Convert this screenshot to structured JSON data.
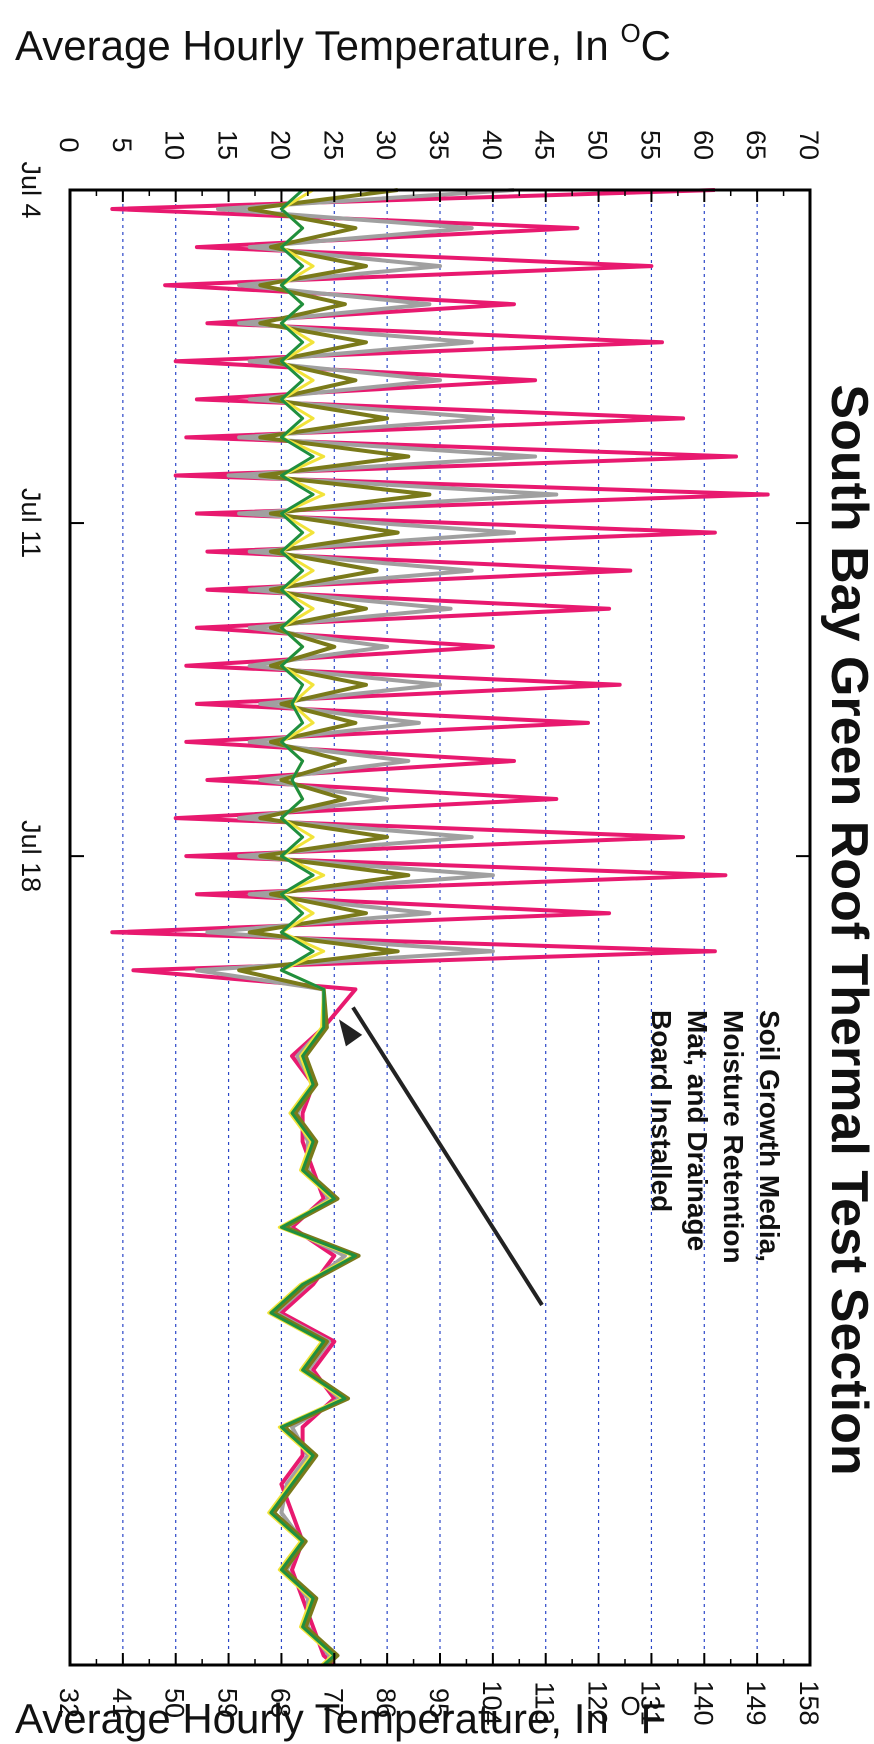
{
  "chart_data": {
    "type": "line",
    "title": "South Bay Green Roof Thermal Test Section",
    "ylabel_c": "Average Hourly Temperature, In °C",
    "ylabel_f": "Average Hourly Temperature, In °F",
    "ylabel_c_base": "Average Hourly Temperature, In ",
    "ylabel_f_base": "Average Hourly Temperature, In ",
    "degree_mark": "O",
    "unit_c": "C",
    "unit_f": "F",
    "ylim_c": [
      0,
      70
    ],
    "ylim_f": [
      32,
      158
    ],
    "yticks_c": [
      "0",
      "5",
      "10",
      "15",
      "20",
      "25",
      "30",
      "35",
      "40",
      "45",
      "50",
      "55",
      "60",
      "65",
      "70"
    ],
    "yticks_f": [
      "32",
      "41",
      "50",
      "59",
      "68",
      "77",
      "86",
      "95",
      "104",
      "113",
      "122",
      "131",
      "140",
      "149",
      "158"
    ],
    "xticks": [
      {
        "label": "Jul 4",
        "day": 0
      },
      {
        "label": "Jul 11",
        "day": 7
      },
      {
        "label": "Jul 18",
        "day": 14
      }
    ],
    "xlim_days": [
      0,
      31
    ],
    "grid": true,
    "annotation": {
      "lines": [
        "Soil Growth Media,",
        "Moisture Retention",
        "Mat, and Drainage",
        "Board Installed"
      ],
      "arrow_target_day": 17.6,
      "arrow_target_temp": 24.5
    },
    "colors": {
      "hot": "#e8196f",
      "gray": "#a0a0a0",
      "olive": "#7a7a1a",
      "yellow": "#f2e33a",
      "green": "#1f8f3f",
      "grid": "#2b46c8"
    },
    "series": [
      {
        "key": "hot",
        "peaks": [
          61,
          48,
          55,
          42,
          56,
          44,
          58,
          63,
          66,
          61,
          53,
          51,
          40,
          52,
          49,
          42,
          46,
          58,
          62,
          51,
          61,
          27
        ],
        "troughs": [
          4,
          12,
          9,
          13,
          10,
          12,
          11,
          10,
          12,
          13,
          13,
          12,
          11,
          12,
          11,
          13,
          10,
          11,
          12,
          4,
          6
        ]
      },
      {
        "key": "gray",
        "peaks": [
          42,
          38,
          35,
          34,
          38,
          35,
          40,
          44,
          46,
          42,
          38,
          36,
          30,
          35,
          33,
          32,
          30,
          38,
          40,
          34,
          40,
          24
        ],
        "troughs": [
          14,
          17,
          16,
          16,
          17,
          17,
          16,
          15,
          16,
          17,
          17,
          17,
          17,
          18,
          17,
          18,
          16,
          16,
          17,
          13,
          12
        ]
      },
      {
        "key": "olive",
        "peaks": [
          31,
          27,
          28,
          26,
          28,
          27,
          30,
          32,
          34,
          31,
          29,
          28,
          25,
          28,
          27,
          26,
          26,
          30,
          32,
          28,
          31,
          24
        ],
        "troughs": [
          17,
          19,
          18,
          18,
          19,
          19,
          18,
          18,
          19,
          19,
          19,
          19,
          19,
          20,
          19,
          20,
          18,
          18,
          19,
          17,
          16
        ]
      },
      {
        "key": "yellow",
        "peaks": [
          23,
          22,
          23,
          22,
          23,
          23,
          23,
          24,
          24,
          23,
          23,
          23,
          22,
          23,
          23,
          22,
          22,
          23,
          24,
          23,
          24,
          24
        ],
        "troughs": [
          20,
          20,
          20,
          20,
          20,
          20,
          20,
          20,
          20,
          20,
          20,
          20,
          20,
          21,
          20,
          21,
          20,
          20,
          20,
          20,
          20
        ]
      },
      {
        "key": "green",
        "peaks": [
          22,
          22,
          22,
          22,
          22,
          22,
          22,
          23,
          23,
          22,
          22,
          22,
          22,
          22,
          22,
          22,
          22,
          22,
          23,
          22,
          23,
          24
        ],
        "troughs": [
          20,
          20,
          20,
          20,
          20,
          20,
          20,
          20,
          20,
          20,
          20,
          20,
          20,
          21,
          20,
          21,
          20,
          20,
          20,
          20,
          20
        ]
      }
    ],
    "after_install": {
      "days": [
        17.6,
        18.2,
        18.8,
        19.4,
        20.0,
        20.6,
        21.2,
        21.8,
        22.4,
        23.0,
        23.6,
        24.2,
        24.8,
        25.4,
        26.0,
        26.6,
        27.2,
        27.8,
        28.4,
        29.0,
        29.6,
        30.2,
        30.8,
        31.0
      ],
      "green": [
        24,
        22,
        23,
        21,
        23,
        22,
        25,
        20,
        27,
        22,
        19,
        24,
        22,
        26,
        20,
        23,
        21,
        19,
        22,
        20,
        23,
        22,
        25,
        24
      ],
      "hot": [
        24,
        21,
        23,
        22,
        22,
        23,
        24,
        21,
        25,
        23,
        20,
        25,
        23,
        25,
        22,
        22,
        20,
        21,
        22,
        21,
        22,
        23,
        24,
        25
      ]
    }
  }
}
